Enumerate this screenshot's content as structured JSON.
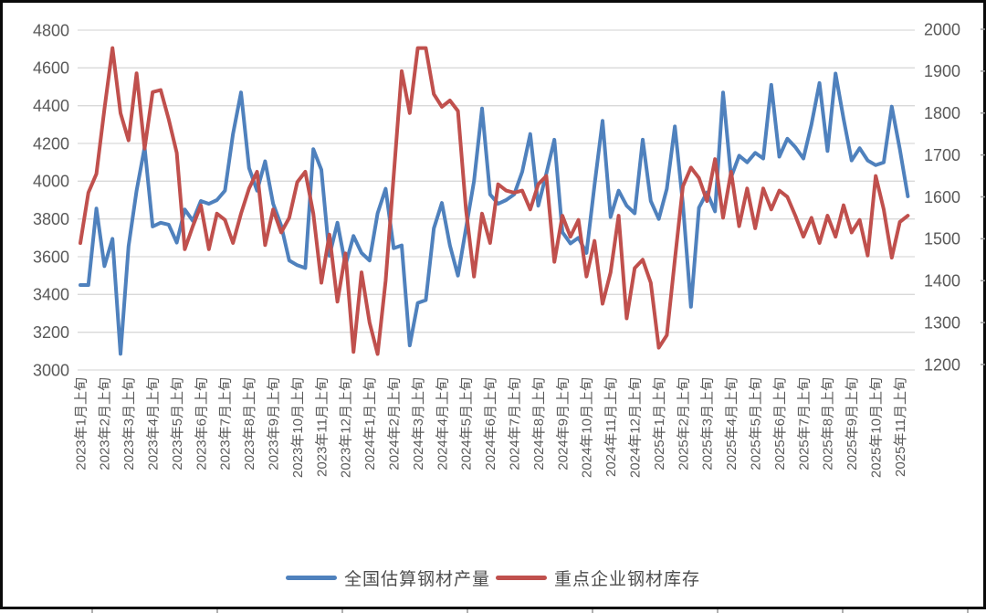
{
  "styles": {
    "background": "#FFFFFF",
    "frame_border_color": "#0A0A0A",
    "grid_color": "#D9D9D9",
    "axis_text_color": "#595959",
    "legend_text_color": "#4D4D4D"
  },
  "legend": {
    "items": [
      {
        "label": "全国估算钢材产量",
        "color": "#4F81BD"
      },
      {
        "label": "重点企业钢材库存",
        "color": "#C0504D"
      }
    ]
  },
  "chart_data": {
    "type": "line",
    "title": "",
    "grid": true,
    "legend_position": "bottom",
    "x_period_start": "2023年1月上旬",
    "x_period_end": "2025年11月中旬",
    "points_per_month": [
      "上旬",
      "中旬",
      "下旬"
    ],
    "x_tick_labels": [
      "2023年1月上旬",
      "2023年2月上旬",
      "2023年3月上旬",
      "2023年4月上旬",
      "2023年5月上旬",
      "2023年6月上旬",
      "2023年7月上旬",
      "2023年8月上旬",
      "2023年9月上旬",
      "2023年10月上旬",
      "2023年11月上旬",
      "2023年12月上旬",
      "2024年1月上旬",
      "2024年2月上旬",
      "2024年3月上旬",
      "2024年4月上旬",
      "2024年5月上旬",
      "2024年6月上旬",
      "2024年7月上旬",
      "2024年8月上旬",
      "2024年9月上旬",
      "2024年10月上旬",
      "2024年11月上旬",
      "2024年12月上旬",
      "2025年1月上旬",
      "2025年2月上旬",
      "2025年3月上旬",
      "2025年4月上旬",
      "2025年5月上旬",
      "2025年6月上旬",
      "2025年7月上旬",
      "2025年8月上旬",
      "2025年9月上旬",
      "2025年10月上旬",
      "2025年11月上旬"
    ],
    "left_axis": {
      "min": 3000,
      "max": 4800,
      "step": 200,
      "ticks": [
        4800,
        4600,
        4400,
        4200,
        4000,
        3800,
        3600,
        3400,
        3200,
        3000
      ]
    },
    "right_axis": {
      "min": 1200,
      "max": 2000,
      "step": 100,
      "ticks": [
        2000,
        1900,
        1800,
        1700,
        1600,
        1500,
        1400,
        1300,
        1200
      ]
    },
    "series": [
      {
        "name": "全国估算钢材产量",
        "axis": "left",
        "color": "#4F81BD",
        "values": [
          3450,
          3450,
          3855,
          3550,
          3695,
          3085,
          3655,
          3950,
          4180,
          3760,
          3780,
          3770,
          3675,
          3850,
          3790,
          3895,
          3880,
          3900,
          3950,
          4250,
          4470,
          4070,
          3950,
          4105,
          3880,
          3765,
          3580,
          3555,
          3540,
          4170,
          4060,
          3605,
          3780,
          3555,
          3710,
          3620,
          3580,
          3830,
          3960,
          3645,
          3660,
          3130,
          3355,
          3370,
          3750,
          3885,
          3660,
          3500,
          3750,
          4000,
          4385,
          3930,
          3880,
          3900,
          3930,
          4050,
          4250,
          3870,
          4040,
          4220,
          3730,
          3670,
          3700,
          3620,
          3980,
          4320,
          3810,
          3950,
          3870,
          3830,
          4220,
          3895,
          3800,
          3960,
          4290,
          3880,
          3335,
          3860,
          3940,
          3840,
          4470,
          4020,
          4135,
          4100,
          4150,
          4120,
          4510,
          4130,
          4225,
          4180,
          4120,
          4300,
          4520,
          4160,
          4570,
          4330,
          4110,
          4175,
          4110,
          4085,
          4100,
          4395,
          4170,
          3920
        ]
      },
      {
        "name": "重点企业钢材库存",
        "axis": "right",
        "color": "#C0504D",
        "values": [
          1490,
          1610,
          1655,
          1810,
          1955,
          1800,
          1735,
          1895,
          1715,
          1850,
          1855,
          1785,
          1705,
          1475,
          1530,
          1580,
          1475,
          1560,
          1545,
          1490,
          1560,
          1620,
          1660,
          1485,
          1570,
          1515,
          1550,
          1635,
          1660,
          1560,
          1395,
          1510,
          1350,
          1465,
          1230,
          1420,
          1300,
          1225,
          1400,
          1650,
          1900,
          1800,
          1955,
          1955,
          1845,
          1815,
          1830,
          1805,
          1570,
          1410,
          1560,
          1490,
          1630,
          1615,
          1610,
          1615,
          1570,
          1630,
          1650,
          1445,
          1555,
          1505,
          1545,
          1410,
          1495,
          1345,
          1420,
          1555,
          1310,
          1430,
          1450,
          1395,
          1240,
          1270,
          1450,
          1625,
          1670,
          1645,
          1590,
          1690,
          1550,
          1660,
          1530,
          1620,
          1525,
          1620,
          1570,
          1615,
          1600,
          1555,
          1505,
          1550,
          1490,
          1555,
          1505,
          1580,
          1515,
          1545,
          1460,
          1650,
          1570,
          1455,
          1540,
          1555
        ]
      }
    ]
  }
}
